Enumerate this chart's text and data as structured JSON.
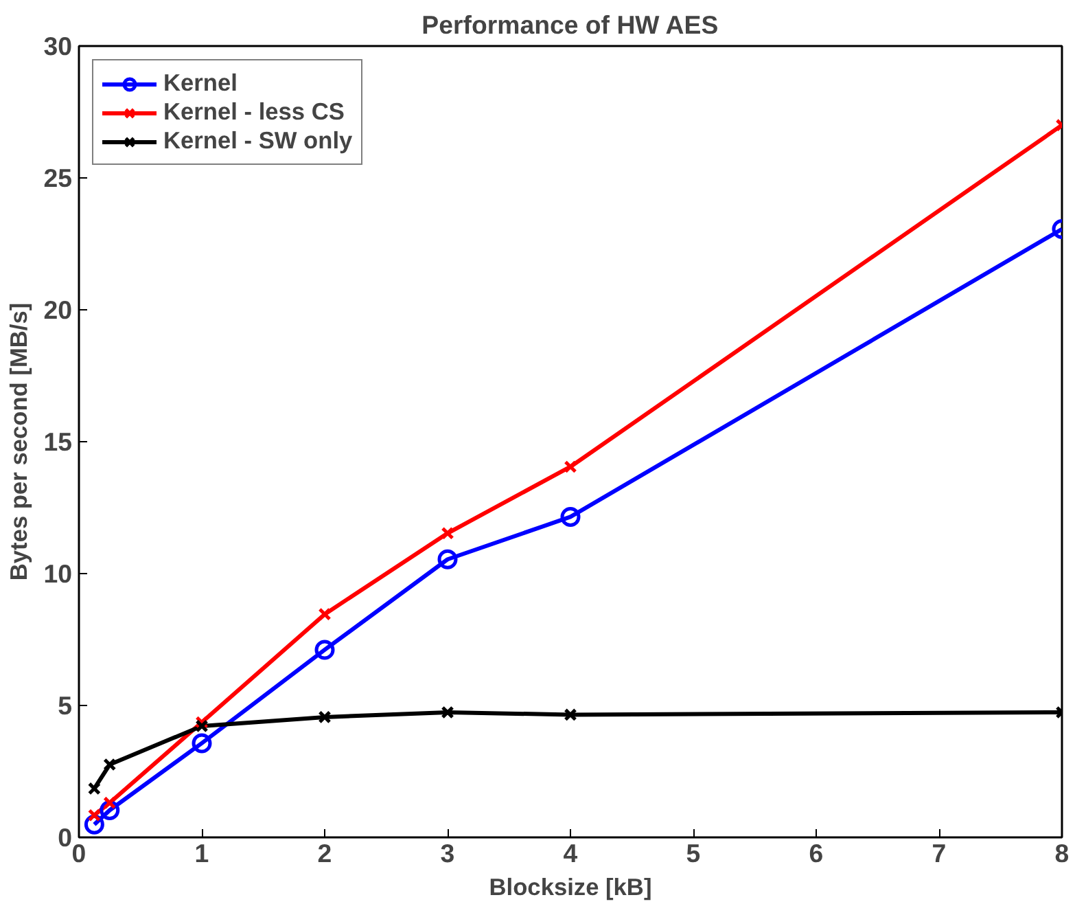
{
  "chart_data": {
    "type": "line",
    "title": "Performance of HW AES",
    "xlabel": "Blocksize [kB]",
    "ylabel": "Bytes per second [MB/s]",
    "x": [
      0.125,
      0.25,
      1,
      2,
      3,
      4,
      8
    ],
    "series": [
      {
        "name": "Kernel",
        "color": "#0000ff",
        "marker": "circle",
        "values": [
          0.49,
          1.03,
          3.57,
          7.11,
          10.54,
          12.15,
          23.06
        ]
      },
      {
        "name": "Kernel - less CS",
        "color": "#ff0000",
        "marker": "cross",
        "values": [
          0.84,
          1.31,
          4.36,
          8.46,
          11.53,
          14.05,
          27.0
        ]
      },
      {
        "name": "Kernel - SW only",
        "color": "#000000",
        "marker": "cross",
        "values": [
          1.85,
          2.76,
          4.22,
          4.56,
          4.74,
          4.65,
          4.74
        ]
      }
    ],
    "xlim": [
      0,
      8
    ],
    "ylim": [
      0,
      30
    ],
    "xticks": [
      0,
      1,
      2,
      3,
      4,
      5,
      6,
      7,
      8
    ],
    "yticks": [
      0,
      5,
      10,
      15,
      20,
      25,
      30
    ],
    "grid": false,
    "legend": "top left",
    "line_style": "solid"
  }
}
